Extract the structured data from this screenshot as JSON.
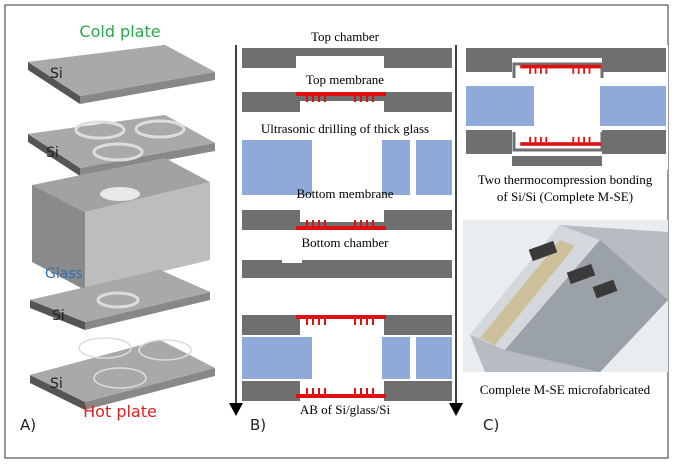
{
  "panel_a": {
    "top_label": "Cold plate",
    "layers": [
      "Si",
      "Si",
      "Glass",
      "Si",
      "Si"
    ],
    "bottom_label": "Hot plate",
    "tag": "A)"
  },
  "panel_b": {
    "steps": [
      "Top chamber",
      "Top membrane",
      "Ultrasonic drilling of thick glass",
      "Bottom membrane",
      "Bottom chamber",
      "AB of Si/glass/Si"
    ],
    "tag": "B)"
  },
  "panel_c": {
    "caption_top": [
      "Two thermocompression bonding",
      "of Si/Si (Complete M-SE)"
    ],
    "caption_bottom": "Complete M-SE microfabricated",
    "tag": "C)"
  }
}
